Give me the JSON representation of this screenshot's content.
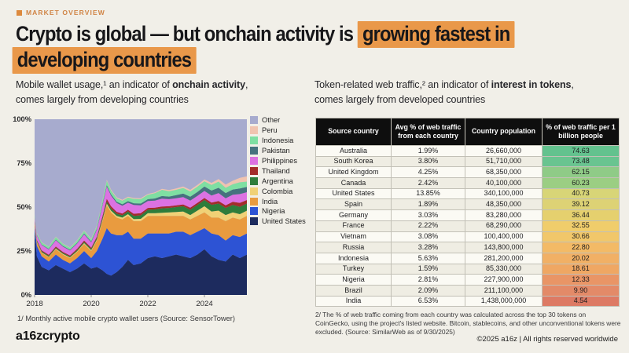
{
  "eyebrow": "MARKET OVERVIEW",
  "title": {
    "pre": "Crypto is global — but onchain activity is ",
    "hl1": "growing fastest in",
    "hl2": "developing countries",
    "highlight_color": "#e9984a"
  },
  "left_section": {
    "subtitle_pre": "Mobile wallet usage,¹ an indicator of ",
    "subtitle_bold": "onchain activity",
    "subtitle_tail": ",",
    "subtitle_line2": "comes largely from developing countries",
    "footnote": "1/ Monthly active mobile crypto wallet users (Source: SensorTower)"
  },
  "chart_data": {
    "type": "area",
    "stacked": true,
    "units": "% of monthly active mobile crypto wallet users",
    "xlim": [
      2018,
      2025.5
    ],
    "ylim": [
      0,
      100
    ],
    "x_ticks": [
      "2018",
      "2020",
      "2022",
      "2024"
    ],
    "y_ticks": [
      "100%",
      "75%",
      "50%",
      "25%",
      "0%"
    ],
    "legend_position": "right",
    "legend_order_top_to_bottom": [
      "Other",
      "Peru",
      "Indonesia",
      "Pakistan",
      "Philippines",
      "Thailand",
      "Argentina",
      "Colombia",
      "India",
      "Nigeria",
      "United States"
    ],
    "x": [
      2018.0,
      2018.08,
      2018.25,
      2018.5,
      2018.75,
      2019.0,
      2019.25,
      2019.5,
      2019.75,
      2020.0,
      2020.2,
      2020.4,
      2020.55,
      2020.7,
      2020.9,
      2021.1,
      2021.3,
      2021.5,
      2021.75,
      2022.0,
      2022.25,
      2022.5,
      2022.75,
      2023.0,
      2023.25,
      2023.5,
      2023.75,
      2024.0,
      2024.25,
      2024.5,
      2024.75,
      2025.0,
      2025.25,
      2025.5
    ],
    "series": [
      {
        "name": "United States",
        "color": "#1d2b5e",
        "values": [
          36,
          22,
          16,
          14,
          17,
          15,
          13,
          15,
          18,
          15,
          16,
          14,
          12,
          11,
          13,
          16,
          20,
          17,
          18,
          21,
          22,
          21,
          22,
          23,
          22,
          21,
          23,
          26,
          22,
          20,
          19,
          23,
          21,
          23
        ]
      },
      {
        "name": "Nigeria",
        "color": "#2d53d4",
        "values": [
          3,
          6,
          6,
          5,
          6,
          5,
          5,
          6,
          7,
          6,
          9,
          18,
          26,
          24,
          21,
          18,
          16,
          15,
          14,
          14,
          13,
          14,
          13,
          13,
          14,
          13,
          13,
          12,
          13,
          14,
          12,
          11,
          12,
          12
        ]
      },
      {
        "name": "India",
        "color": "#e99b3f",
        "values": [
          2,
          2,
          2,
          2.5,
          3,
          3,
          3,
          3.5,
          4,
          4,
          6,
          10,
          13,
          12,
          10,
          9,
          9,
          10,
          10,
          10,
          10,
          10,
          10,
          9,
          9,
          9,
          9,
          9,
          9,
          10,
          11,
          10,
          10,
          10
        ]
      },
      {
        "name": "Colombia",
        "color": "#f0d176",
        "values": [
          0.3,
          0.3,
          0.3,
          0.3,
          0.4,
          0.4,
          0.4,
          0.4,
          0.5,
          0.5,
          0.6,
          0.8,
          1,
          1,
          1,
          1,
          1,
          1.2,
          1.3,
          1.5,
          1.5,
          1.8,
          2,
          2.2,
          2.5,
          2.5,
          3,
          3.5,
          3.5,
          4,
          3.5,
          3,
          3,
          3
        ]
      },
      {
        "name": "Argentina",
        "color": "#2e7d3b",
        "values": [
          0.5,
          0.5,
          0.5,
          0.5,
          0.5,
          0.5,
          0.5,
          0.6,
          0.7,
          0.7,
          0.8,
          1,
          1.2,
          1.2,
          1.2,
          1.3,
          1.5,
          1.8,
          2,
          2,
          2.2,
          2.5,
          2.5,
          2.8,
          3,
          3,
          3.2,
          3.5,
          3.8,
          4,
          4,
          4.2,
          4.2,
          4
        ]
      },
      {
        "name": "Thailand",
        "color": "#a32c2a",
        "values": [
          0.5,
          0.5,
          0.6,
          0.6,
          0.7,
          0.6,
          0.6,
          0.7,
          0.8,
          0.7,
          0.8,
          1.2,
          1.5,
          1.3,
          1.1,
          1,
          1,
          1.2,
          1.2,
          1,
          1,
          1,
          1,
          1,
          1,
          1.2,
          1.2,
          1.2,
          1.3,
          1.5,
          1.5,
          1.8,
          2.2,
          2
        ]
      },
      {
        "name": "Philippines",
        "color": "#dc72e2",
        "values": [
          2,
          2.5,
          3,
          3,
          3.5,
          3,
          2.8,
          3,
          3.5,
          3,
          4,
          6,
          7,
          6,
          5,
          4.5,
          4,
          5,
          4.5,
          4,
          4,
          4.5,
          4,
          4,
          4.2,
          4,
          4,
          4,
          4,
          4.5,
          4,
          4,
          5,
          4.5
        ]
      },
      {
        "name": "Pakistan",
        "color": "#46727e",
        "values": [
          0.3,
          0.3,
          0.3,
          0.3,
          0.4,
          0.4,
          0.4,
          0.4,
          0.5,
          0.5,
          0.5,
          0.7,
          0.8,
          0.8,
          0.8,
          0.8,
          0.9,
          1,
          1,
          1,
          1.2,
          1.5,
          1.5,
          1.8,
          2,
          2.2,
          2.2,
          2.5,
          2.8,
          3,
          3,
          3,
          3.2,
          3
        ]
      },
      {
        "name": "Indonesia",
        "color": "#7fdfa2",
        "values": [
          1,
          1,
          1.2,
          1.2,
          1.5,
          1.2,
          1.2,
          1.3,
          1.5,
          1.3,
          1.5,
          2,
          2.5,
          2.2,
          2,
          2,
          2,
          2.5,
          2.5,
          2.5,
          3,
          3.5,
          3,
          3,
          3.2,
          3,
          3,
          3,
          3.2,
          3.5,
          3,
          3,
          3.5,
          3
        ]
      },
      {
        "name": "Peru",
        "color": "#f0c4b0",
        "values": [
          0.2,
          0.2,
          0.2,
          0.2,
          0.2,
          0.2,
          0.2,
          0.2,
          0.3,
          0.3,
          0.3,
          0.4,
          0.5,
          0.5,
          0.5,
          0.5,
          0.5,
          0.5,
          0.5,
          0.5,
          0.5,
          0.6,
          0.7,
          0.8,
          0.8,
          0.9,
          1,
          1,
          1.2,
          1.5,
          1.8,
          2,
          2.5,
          3
        ]
      },
      {
        "name": "Other",
        "color": "#a7abce",
        "remainder": true
      }
    ]
  },
  "right_section": {
    "subtitle_pre": "Token-related web traffic,² an indicator of ",
    "subtitle_bold": "interest in tokens",
    "subtitle_tail": ",",
    "subtitle_line2": "comes largely from developed countries",
    "footnote": "2/ The % of web traffic coming from each country was calculated across the top 30 tokens on CoinGecko, using the project's listed website. Bitcoin, stablecoins, and other unconventional tokens were excluded. (Source: SimilarWeb as of 9/30/2025)"
  },
  "table": {
    "headers": [
      "Source country",
      "Avg % of web traffic from each country",
      "Country population",
      "% of web traffic per 1 billion people"
    ],
    "rows": [
      {
        "country": "Australia",
        "traffic": "1.99%",
        "population": "26,660,000",
        "per_billion": "74.63",
        "color": "#63c28e"
      },
      {
        "country": "South Korea",
        "traffic": "3.80%",
        "population": "51,710,000",
        "per_billion": "73.48",
        "color": "#69c490"
      },
      {
        "country": "United Kingdom",
        "traffic": "4.25%",
        "population": "68,350,000",
        "per_billion": "62.15",
        "color": "#8fcb87"
      },
      {
        "country": "Canada",
        "traffic": "2.42%",
        "population": "40,100,000",
        "per_billion": "60.23",
        "color": "#9bce83"
      },
      {
        "country": "United States",
        "traffic": "13.85%",
        "population": "340,100,000",
        "per_billion": "40.73",
        "color": "#d8d577"
      },
      {
        "country": "Spain",
        "traffic": "1.89%",
        "population": "48,350,000",
        "per_billion": "39.12",
        "color": "#ddd275"
      },
      {
        "country": "Germany",
        "traffic": "3.03%",
        "population": "83,280,000",
        "per_billion": "36.44",
        "color": "#e5d06e"
      },
      {
        "country": "France",
        "traffic": "2.22%",
        "population": "68,290,000",
        "per_billion": "32.55",
        "color": "#f0cd6b"
      },
      {
        "country": "Vietnam",
        "traffic": "3.08%",
        "population": "100,400,000",
        "per_billion": "30.66",
        "color": "#f1c76a"
      },
      {
        "country": "Russia",
        "traffic": "3.28%",
        "population": "143,800,000",
        "per_billion": "22.80",
        "color": "#f3ba66"
      },
      {
        "country": "Indonesia",
        "traffic": "5.63%",
        "population": "281,200,000",
        "per_billion": "20.02",
        "color": "#f1b065"
      },
      {
        "country": "Turkey",
        "traffic": "1.59%",
        "population": "85,330,000",
        "per_billion": "18.61",
        "color": "#efa763"
      },
      {
        "country": "Nigeria",
        "traffic": "2.81%",
        "population": "227,900,000",
        "per_billion": "12.33",
        "color": "#e99566"
      },
      {
        "country": "Brazil",
        "traffic": "2.09%",
        "population": "211,100,000",
        "per_billion": "9.90",
        "color": "#e38a68"
      },
      {
        "country": "India",
        "traffic": "6.53%",
        "population": "1,438,000,000",
        "per_billion": "4.54",
        "color": "#dd7a64"
      }
    ]
  },
  "footer": {
    "logo": "a16zcrypto",
    "copyright": "©2025 a16z | All rights reserved worldwide"
  }
}
